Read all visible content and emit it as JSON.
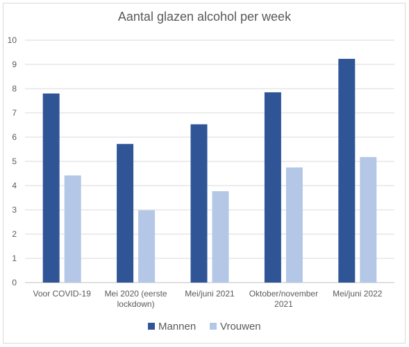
{
  "chart_data": {
    "type": "bar",
    "title": "Aantal glazen alcohol per week",
    "xlabel": "",
    "ylabel": "",
    "ylim": [
      0,
      10
    ],
    "yticks": [
      "0",
      "1",
      "2",
      "3",
      "4",
      "5",
      "6",
      "7",
      "8",
      "9",
      "10"
    ],
    "categories": [
      [
        "Voor COVID-19"
      ],
      [
        "Mei 2020 (eerste",
        "lockdown)"
      ],
      [
        "Mei/juni 2021"
      ],
      [
        "Oktober/november",
        "2021"
      ],
      [
        "Mei/juni 2022"
      ]
    ],
    "series": [
      {
        "name": "Mannen",
        "color": "#2f5597",
        "values": [
          7.8,
          5.72,
          6.53,
          7.85,
          9.23
        ]
      },
      {
        "name": "Vrouwen",
        "color": "#b4c7e7",
        "values": [
          4.42,
          2.98,
          3.77,
          4.75,
          5.18
        ]
      }
    ],
    "grid": true,
    "legend_position": "bottom"
  }
}
